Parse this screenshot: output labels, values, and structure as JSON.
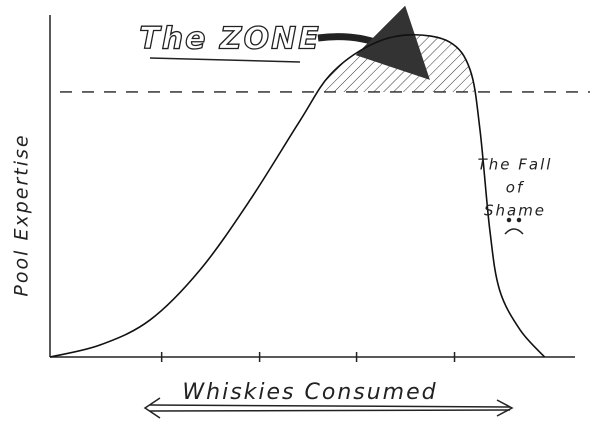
{
  "chart_data": {
    "type": "line",
    "title": "The ZONE",
    "xlabel": "Whiskies Consumed",
    "ylabel": "Pool Expertise",
    "annotation": [
      "The Fall",
      "of",
      "Shame"
    ],
    "x": [
      0,
      0.51,
      1.02,
      1.53,
      2.04,
      2.55,
      2.86,
      3.27,
      3.67,
      4.08,
      4.29,
      4.39,
      4.49,
      4.59,
      4.8,
      5.05
    ],
    "values": [
      0,
      0.35,
      1.08,
      2.54,
      4.58,
      6.9,
      8.25,
      9.12,
      9.42,
      9.21,
      8.39,
      6.64,
      3.72,
      1.96,
      0.79,
      0
    ],
    "color": "#111111",
    "threshold": 7.75,
    "xlim": [
      0,
      5.36
    ],
    "ylim": [
      0,
      10
    ],
    "xticks": [
      1.14,
      2.14,
      3.13,
      4.13
    ]
  }
}
